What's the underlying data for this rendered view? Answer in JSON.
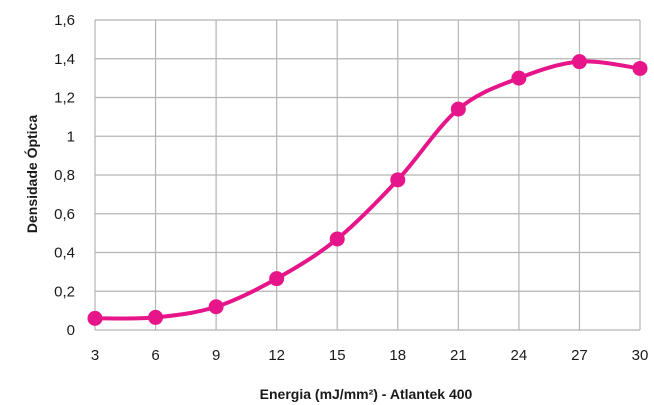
{
  "chart_data": {
    "type": "line",
    "smooth": true,
    "title": "",
    "xlabel": "Energia (mJ/mm²) - Atlantek 400",
    "ylabel": "Densidade Óptica",
    "x": [
      3,
      6,
      9,
      12,
      15,
      18,
      21,
      24,
      27,
      30
    ],
    "x_tick_labels": [
      "3",
      "6",
      "9",
      "12",
      "15",
      "18",
      "21",
      "24",
      "27",
      "30"
    ],
    "y_tick_labels": [
      "0",
      "0,2",
      "0,4",
      "0,6",
      "0,8",
      "1",
      "1,2",
      "1,4",
      "1,6"
    ],
    "xlim": [
      3,
      30
    ],
    "ylim": [
      0,
      1.6
    ],
    "y_tick_values": [
      0,
      0.2,
      0.4,
      0.6,
      0.8,
      1.0,
      1.2,
      1.4,
      1.6
    ],
    "grid": true,
    "legend": "none",
    "series": [
      {
        "color": "#e6168a",
        "values": [
          0.06,
          0.065,
          0.12,
          0.265,
          0.47,
          0.775,
          1.14,
          1.3,
          1.385,
          1.35
        ]
      }
    ],
    "colors": {
      "grid": "#b4b4b4",
      "text": "#1a1a1a"
    }
  }
}
